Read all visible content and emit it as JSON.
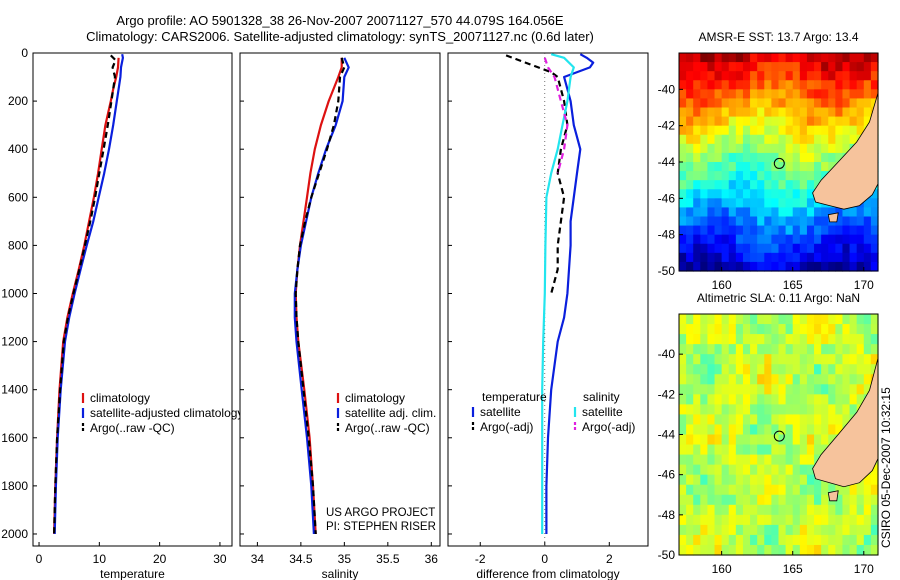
{
  "header": {
    "line1": "Argo profile: AO 5901328_38 26-Nov-2007 20071127_570 44.079S 164.056E",
    "line2": "Climatology: CARS2006. Satellite-adjusted climatology: synTS_20071127.nc (0.6d later)"
  },
  "side_label": "CSIRO 05-Dec-2007 10:32:15",
  "colors": {
    "clim": "#dd1111",
    "sat": "#0a1fdd",
    "argo": "#000000",
    "sat_sal": "#22e5ee",
    "argo_sal": "#e020e0",
    "land": "#f6c39c"
  },
  "chart_data": [
    {
      "id": "temperature",
      "type": "line",
      "xlabel": "temperature",
      "ylabel": "",
      "xlim": [
        -1,
        32
      ],
      "ylim": [
        0,
        2050
      ],
      "xticks": [
        0,
        10,
        20,
        30
      ],
      "yticks": [
        0,
        200,
        400,
        600,
        800,
        1000,
        1200,
        1400,
        1600,
        1800,
        2000
      ],
      "legend": [
        "climatology",
        "satellite-adjusted climatology",
        "Argo(..raw -QC)"
      ],
      "series": [
        {
          "name": "climatology",
          "style": "solid",
          "color": "clim",
          "depth": [
            20,
            60,
            100,
            150,
            200,
            300,
            400,
            500,
            600,
            700,
            800,
            900,
            1000,
            1100,
            1200,
            1400,
            1600,
            1800,
            2000
          ],
          "values": [
            13.2,
            13.1,
            12.8,
            12.3,
            11.9,
            11.0,
            10.4,
            9.8,
            9.1,
            8.3,
            7.5,
            6.6,
            5.6,
            4.7,
            4.0,
            3.4,
            3.0,
            2.7,
            2.5
          ]
        },
        {
          "name": "satellite-adjusted climatology",
          "style": "solid",
          "color": "sat",
          "depth": [
            5,
            20,
            60,
            100,
            150,
            200,
            300,
            400,
            500,
            600,
            700,
            800,
            900,
            1000,
            1100,
            1200,
            1400,
            1600,
            1800,
            2000
          ],
          "values": [
            13.8,
            13.9,
            13.6,
            13.5,
            13.2,
            12.9,
            12.3,
            11.6,
            10.8,
            9.9,
            9.0,
            7.9,
            6.9,
            5.9,
            5.0,
            4.3,
            3.6,
            3.1,
            2.8,
            2.6
          ]
        },
        {
          "name": "Argo(..raw -QC)",
          "style": "dashed",
          "color": "argo",
          "depth": [
            10,
            30,
            60,
            100,
            150,
            200,
            300,
            400,
            500,
            600,
            700,
            800,
            900,
            1000,
            1100,
            1200,
            1400,
            1600,
            1800,
            2000
          ],
          "values": [
            11.9,
            12.7,
            12.2,
            12.6,
            12.3,
            12.0,
            11.4,
            10.7,
            10.0,
            9.3,
            8.5,
            7.6,
            6.7,
            5.7,
            4.8,
            4.1,
            3.5,
            3.0,
            2.7,
            2.5
          ]
        }
      ]
    },
    {
      "id": "salinity",
      "type": "line",
      "xlabel": "salinity",
      "ylabel": "",
      "xlim": [
        33.8,
        36.1
      ],
      "ylim": [
        0,
        2050
      ],
      "xticks": [
        34,
        34.5,
        35,
        35.5,
        36
      ],
      "yticks": [
        0,
        200,
        400,
        600,
        800,
        1000,
        1200,
        1400,
        1600,
        1800,
        2000
      ],
      "legend": [
        "climatology",
        "satellite adj. clim.",
        "Argo(..raw -QC)"
      ],
      "annotation": [
        "US ARGO PROJECT",
        "PI: STEPHEN RISER"
      ],
      "series": [
        {
          "name": "climatology",
          "style": "solid",
          "color": "clim",
          "depth": [
            20,
            60,
            100,
            200,
            300,
            400,
            500,
            600,
            700,
            800,
            900,
            1000,
            1100,
            1200,
            1400,
            1600,
            1800,
            2000
          ],
          "values": [
            34.97,
            34.97,
            34.93,
            34.82,
            34.73,
            34.66,
            34.61,
            34.57,
            34.53,
            34.49,
            34.46,
            34.44,
            34.45,
            34.47,
            34.54,
            34.6,
            34.64,
            34.67
          ]
        },
        {
          "name": "satellite adj. clim.",
          "style": "solid",
          "color": "sat",
          "depth": [
            20,
            60,
            100,
            200,
            300,
            400,
            500,
            600,
            700,
            800,
            900,
            1000,
            1100,
            1200,
            1400,
            1600,
            1800,
            2000
          ],
          "values": [
            35.0,
            35.05,
            35.0,
            34.98,
            34.9,
            34.79,
            34.7,
            34.62,
            34.56,
            34.5,
            34.46,
            34.43,
            34.43,
            34.45,
            34.51,
            34.57,
            34.62,
            34.65
          ]
        },
        {
          "name": "Argo(..raw -QC)",
          "style": "dashed",
          "color": "argo",
          "depth": [
            20,
            60,
            100,
            200,
            300,
            400,
            500,
            600,
            700,
            800,
            900,
            1000,
            1100,
            1200,
            1400,
            1600,
            1800,
            2000
          ],
          "values": [
            34.97,
            35.0,
            34.95,
            34.93,
            34.88,
            34.8,
            34.71,
            34.62,
            34.55,
            34.49,
            34.46,
            34.44,
            34.45,
            34.47,
            34.53,
            34.59,
            34.64,
            34.67
          ]
        }
      ]
    },
    {
      "id": "difference",
      "type": "line",
      "xlabel": "difference from climatology",
      "ylabel": "",
      "xlim": [
        -3,
        3.2
      ],
      "ylim": [
        0,
        2050
      ],
      "xticks": [
        -2,
        0,
        2
      ],
      "yticks": [
        0,
        200,
        400,
        600,
        800,
        1000,
        1200,
        1400,
        1600,
        1800,
        2000
      ],
      "legend_titles": [
        "temperature",
        "salinity"
      ],
      "legend": [
        "satellite",
        "Argo(-adj)",
        "satellite",
        "Argo(-adj)"
      ],
      "series": [
        {
          "name": "temperature satellite",
          "style": "solid",
          "color": "sat",
          "depth": [
            5,
            20,
            40,
            60,
            100,
            150,
            200,
            300,
            400,
            500,
            600,
            700,
            800,
            900,
            1000,
            1100,
            1200,
            1400,
            1600,
            1800,
            2000
          ],
          "values": [
            1.1,
            1.3,
            1.5,
            1.4,
            0.6,
            0.7,
            0.8,
            0.9,
            1.1,
            1.0,
            0.9,
            0.8,
            0.8,
            0.75,
            0.7,
            0.6,
            0.4,
            0.2,
            0.1,
            0.05,
            0.05
          ]
        },
        {
          "name": "temperature Argo(-adj)",
          "style": "dashed",
          "color": "argo",
          "depth": [
            10,
            20,
            40,
            60,
            80,
            100,
            150,
            200,
            300,
            400,
            500,
            600,
            700,
            800,
            900,
            1000
          ],
          "values": [
            -1.2,
            -1.0,
            -0.6,
            -0.2,
            0.2,
            0.4,
            0.5,
            0.6,
            0.7,
            0.5,
            0.4,
            0.6,
            0.5,
            0.4,
            0.4,
            0.2
          ]
        },
        {
          "name": "salinity satellite",
          "style": "solid",
          "color": "sat_sal",
          "depth": [
            5,
            20,
            60,
            100,
            200,
            300,
            400,
            500,
            600,
            800,
            1000,
            1200,
            1400,
            1600,
            1800,
            2000
          ],
          "values": [
            0.2,
            0.6,
            0.9,
            0.8,
            0.7,
            0.55,
            0.4,
            0.2,
            0.05,
            0.02,
            0.0,
            -0.05,
            -0.08,
            -0.08,
            -0.08,
            -0.08
          ]
        },
        {
          "name": "salinity Argo(-adj)",
          "style": "dashed",
          "color": "argo_sal",
          "depth": [
            20,
            60,
            100,
            200,
            300,
            400,
            500
          ],
          "values": [
            0.0,
            0.1,
            0.3,
            0.5,
            0.7,
            0.6,
            0.4
          ]
        }
      ]
    },
    {
      "id": "sst_map",
      "type": "heatmap",
      "title": "AMSR-E SST: 13.7 Argo: 13.4",
      "xlim": [
        157,
        171
      ],
      "ylim": [
        -50,
        -38
      ],
      "xticks": [
        160,
        165,
        170
      ],
      "yticks": [
        -40,
        -42,
        -44,
        -46,
        -48,
        -50
      ],
      "marker": {
        "lon": 164.056,
        "lat": -44.079
      }
    },
    {
      "id": "sla_map",
      "type": "heatmap",
      "title": "Altimetric SLA: 0.11 Argo: NaN",
      "xlim": [
        157,
        171
      ],
      "ylim": [
        -50,
        -38
      ],
      "xticks": [
        160,
        165,
        170
      ],
      "yticks": [
        -40,
        -42,
        -44,
        -46,
        -48,
        -50
      ],
      "marker": {
        "lon": 164.056,
        "lat": -44.079
      }
    }
  ]
}
